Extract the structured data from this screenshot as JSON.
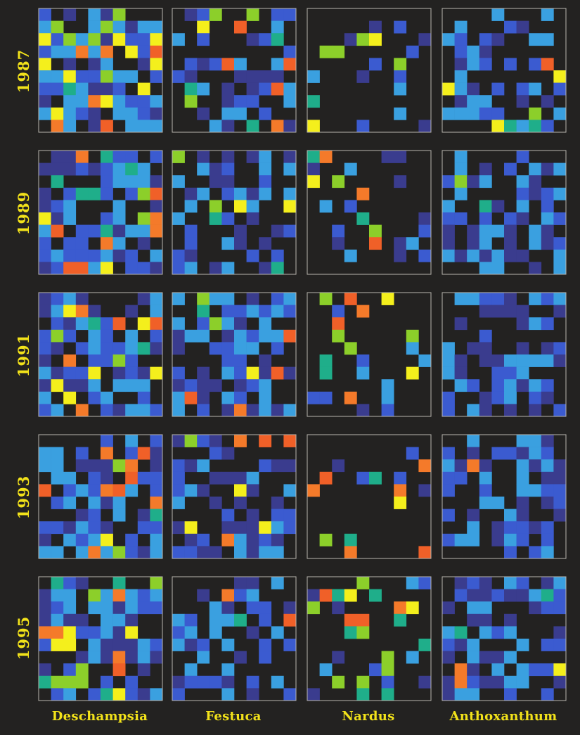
{
  "chart_data": {
    "type": "heatmap",
    "title": "",
    "rows": [
      "1987",
      "1989",
      "1991",
      "1993",
      "1995"
    ],
    "columns": [
      "Deschampsia",
      "Festuca",
      "Nardus",
      "Anthoxanthum"
    ],
    "grid_size": 10,
    "legend": "none",
    "colormap": [
      "#232221",
      "#3a3c8e",
      "#3b5bd0",
      "#3aa0e0",
      "#1fae8a",
      "#8ccf2a",
      "#f4ef1c",
      "#f47a2a",
      "#f06028"
    ],
    "density": [
      [
        0.78,
        0.5,
        0.2,
        0.52
      ],
      [
        0.72,
        0.5,
        0.18,
        0.6
      ],
      [
        0.74,
        0.58,
        0.2,
        0.58
      ],
      [
        0.72,
        0.6,
        0.22,
        0.45
      ],
      [
        0.75,
        0.5,
        0.24,
        0.62
      ]
    ],
    "hot_fraction": [
      [
        0.3,
        0.12,
        0.55,
        0.06
      ],
      [
        0.2,
        0.1,
        0.58,
        0.04
      ],
      [
        0.2,
        0.12,
        0.55,
        0.03
      ],
      [
        0.25,
        0.18,
        0.6,
        0.02
      ],
      [
        0.28,
        0.12,
        0.62,
        0.03
      ]
    ]
  }
}
